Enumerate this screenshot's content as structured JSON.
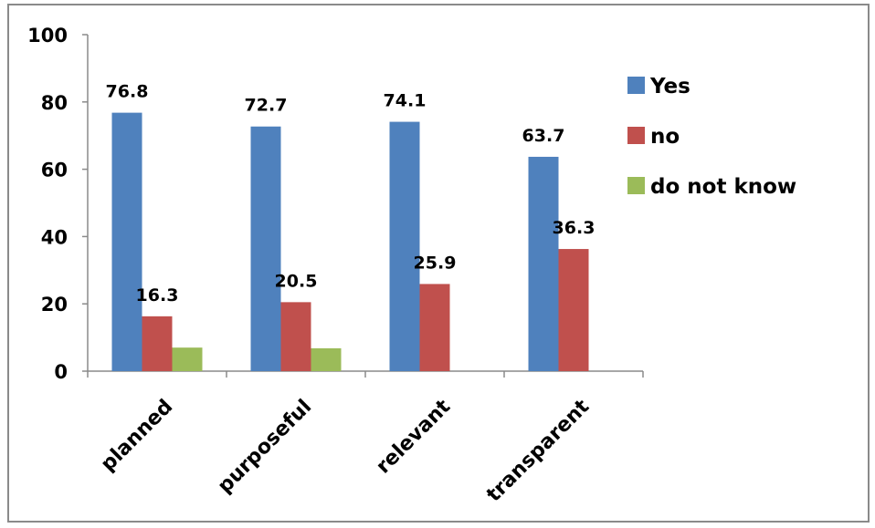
{
  "chart_data": {
    "type": "bar",
    "categories": [
      "planned",
      "purposeful",
      "relevant",
      "transparent"
    ],
    "series": [
      {
        "name": "Yes",
        "color": "#4F81BD",
        "values": [
          76.8,
          72.7,
          74.1,
          63.7
        ],
        "labels": [
          "76.8",
          "72.7",
          "74.1",
          "63.7"
        ]
      },
      {
        "name": "no",
        "color": "#C0504D",
        "values": [
          16.3,
          20.5,
          25.9,
          36.3
        ],
        "labels": [
          "16.3",
          "20.5",
          "25.9",
          "36.3"
        ]
      },
      {
        "name": "do not know",
        "color": "#9BBB59",
        "values": [
          7,
          6.8,
          0,
          0
        ],
        "labels": [
          "",
          "",
          "",
          ""
        ]
      }
    ],
    "yticks": [
      "0",
      "20",
      "40",
      "60",
      "80",
      "100"
    ],
    "ylim": [
      0,
      100
    ],
    "grid": false,
    "legend_position": "right"
  }
}
